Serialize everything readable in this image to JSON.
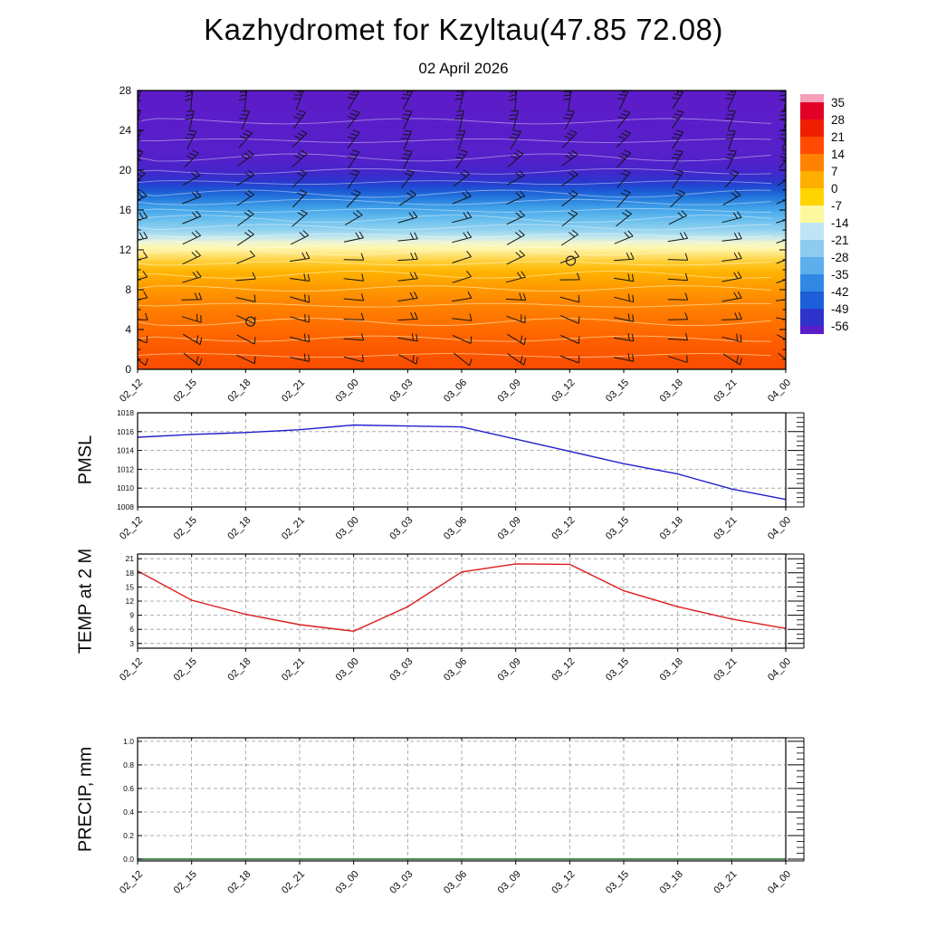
{
  "header": {
    "title": "Kazhydromet for Kzyltau(47.85 72.08)",
    "subtitle": "02 April 2026"
  },
  "chart_data": [
    {
      "id": "xsec",
      "type": "heatmap",
      "title": "time-height temperature cross-section with wind barbs",
      "x_categories": [
        "02_12",
        "02_15",
        "02_18",
        "02_21",
        "03_00",
        "03_03",
        "03_06",
        "03_09",
        "03_12",
        "03_15",
        "03_18",
        "03_21",
        "04_00"
      ],
      "ylim": [
        0,
        28
      ],
      "yticks": [
        0,
        4,
        8,
        12,
        16,
        20,
        24,
        28
      ],
      "ytick_labels": [
        "0",
        "4",
        "8",
        "12",
        "16",
        "20",
        "24",
        "28"
      ],
      "colorbar_ticks": [
        "35",
        "28",
        "21",
        "14",
        "7",
        "0",
        "-7",
        "-14",
        "-21",
        "-28",
        "-35",
        "-42",
        "-49",
        "-56"
      ],
      "colorbar_colors": [
        "#f5a0b8",
        "#e30026",
        "#ef1e00",
        "#ff4a00",
        "#ff8200",
        "#ffae00",
        "#ffd400",
        "#fdf89e",
        "#bfe4f6",
        "#8ecbf1",
        "#5caeec",
        "#3188e4",
        "#1d5ed9",
        "#2e33cc",
        "#5b1dc9"
      ],
      "profile_stops": [
        {
          "f": 0.0,
          "c": "#f94b00"
        },
        {
          "f": 0.08,
          "c": "#fd5a00"
        },
        {
          "f": 0.16,
          "c": "#ff6f00"
        },
        {
          "f": 0.24,
          "c": "#ff8600"
        },
        {
          "f": 0.3,
          "c": "#ff9d00"
        },
        {
          "f": 0.35,
          "c": "#ffb300"
        },
        {
          "f": 0.385,
          "c": "#ffcc33"
        },
        {
          "f": 0.415,
          "c": "#ffe782"
        },
        {
          "f": 0.435,
          "c": "#fff7ae"
        },
        {
          "f": 0.455,
          "c": "#eef5cf"
        },
        {
          "f": 0.475,
          "c": "#bfe6ee"
        },
        {
          "f": 0.5,
          "c": "#92d2f0"
        },
        {
          "f": 0.54,
          "c": "#66bdee"
        },
        {
          "f": 0.58,
          "c": "#3fa0e8"
        },
        {
          "f": 0.615,
          "c": "#2478dd"
        },
        {
          "f": 0.645,
          "c": "#1c55d4"
        },
        {
          "f": 0.675,
          "c": "#2b36cd"
        },
        {
          "f": 0.71,
          "c": "#4525cb"
        },
        {
          "f": 0.76,
          "c": "#5520ca"
        },
        {
          "f": 1.0,
          "c": "#5e1cc9"
        }
      ],
      "overlays": {
        "wind_barbs": true,
        "contour_lines": true,
        "barb_color": "#141414"
      },
      "calm_circles": [
        {
          "t": 2.09,
          "level": 4.8
        },
        {
          "t": 8.02,
          "level": 10.9
        }
      ]
    },
    {
      "id": "pmsl",
      "type": "line",
      "ylabel": "PMSL",
      "color": "#2020cc",
      "ylim": [
        1008,
        1018
      ],
      "yticks": [
        1008,
        1010,
        1012,
        1014,
        1016,
        1018
      ],
      "ytick_labels": [
        "1008",
        "1010",
        "1012",
        "1014",
        "1016",
        "1018"
      ],
      "x_categories": [
        "02_12",
        "02_15",
        "02_18",
        "02_21",
        "03_00",
        "03_03",
        "03_06",
        "03_09",
        "03_12",
        "03_15",
        "03_18",
        "03_21",
        "04_00"
      ],
      "values": [
        1015.4,
        1015.7,
        1015.9,
        1016.2,
        1016.7,
        1016.6,
        1016.5,
        1015.2,
        1013.9,
        1012.6,
        1011.5,
        1009.9,
        1008.8
      ]
    },
    {
      "id": "temp",
      "type": "line",
      "ylabel": "TEMP at 2 M",
      "color": "#dd1c1c",
      "ylim": [
        2,
        22
      ],
      "yticks": [
        3,
        6,
        9,
        12,
        15,
        18,
        21
      ],
      "ytick_labels": [
        "3",
        "6",
        "9",
        "12",
        "15",
        "18",
        "21"
      ],
      "x_categories": [
        "02_12",
        "02_15",
        "02_18",
        "02_21",
        "03_00",
        "03_03",
        "03_06",
        "03_09",
        "03_12",
        "03_15",
        "03_18",
        "03_21",
        "04_00"
      ],
      "values": [
        18.4,
        12.2,
        9.2,
        7.0,
        5.6,
        10.8,
        18.2,
        19.9,
        19.8,
        14.2,
        10.8,
        8.2,
        6.2
      ]
    },
    {
      "id": "precip",
      "type": "line",
      "ylabel": "PRECIP, mm",
      "color": "#156b21",
      "ylim": [
        -0.015,
        1.03
      ],
      "yticks": [
        0.0,
        0.2,
        0.4,
        0.6,
        0.8,
        1.0
      ],
      "ytick_labels": [
        "0.0",
        "0.2",
        "0.4",
        "0.6",
        "0.8",
        "1.0"
      ],
      "x_categories": [
        "02_12",
        "02_15",
        "02_18",
        "02_21",
        "03_00",
        "03_03",
        "03_06",
        "03_09",
        "03_12",
        "03_15",
        "03_18",
        "03_21",
        "04_00"
      ],
      "values": [
        0,
        0,
        0,
        0,
        0,
        0,
        0,
        0,
        0,
        0,
        0,
        0,
        0
      ]
    }
  ]
}
